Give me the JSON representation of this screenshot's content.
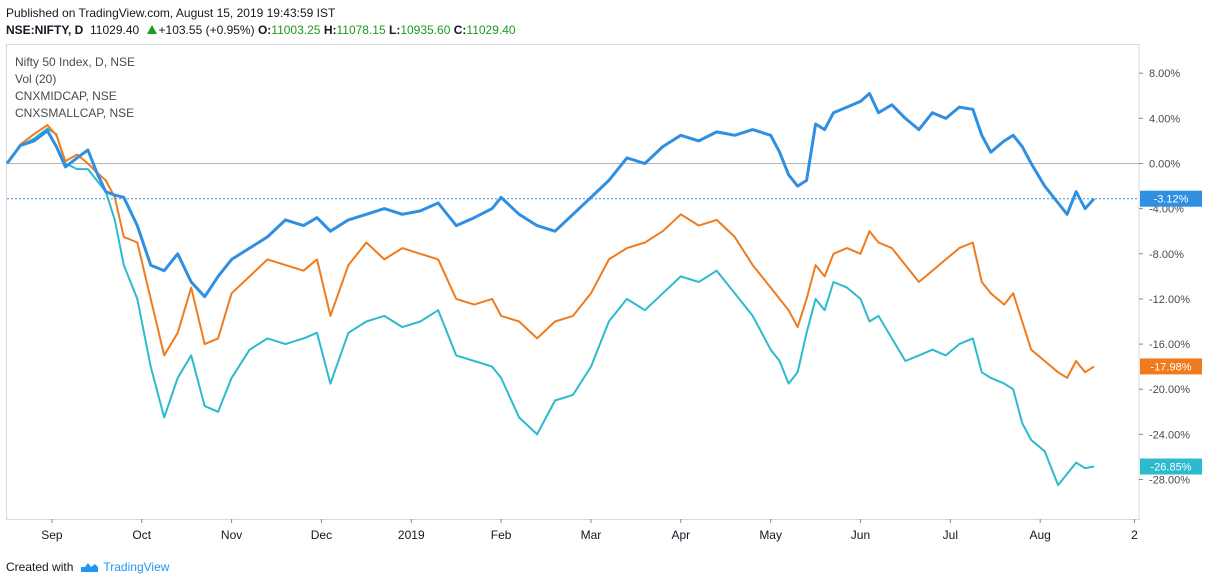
{
  "header": {
    "published": "Published on TradingView.com, August 15, 2019 19:43:59 IST",
    "symbol": "NSE:NIFTY, D",
    "price": "11029.40",
    "change": "+103.55 (+0.95%)",
    "o_label": "O:",
    "o_val": "11003.25",
    "h_label": "H:",
    "h_val": "11078.15",
    "l_label": "L:",
    "l_val": "10935.60",
    "c_label": "C:",
    "c_val": "11029.40"
  },
  "legend": {
    "main": "Nifty 50 Index, D, NSE",
    "vol": "Vol (20)",
    "s1": "CNXMIDCAP, NSE",
    "s2": "CNXSMALLCAP, NSE"
  },
  "footer": {
    "created": "Created with",
    "brand": "TradingView"
  },
  "chart_data": {
    "type": "line",
    "y_unit": "%",
    "ylim": [
      -32,
      10
    ],
    "y_ticks": [
      "8.00%",
      "4.00%",
      "0.00%",
      "-4.00%",
      "-8.00%",
      "-12.00%",
      "-16.00%",
      "-20.00%",
      "-24.00%",
      "-28.00%"
    ],
    "y_tick_values": [
      8,
      4,
      0,
      -4,
      -8,
      -12,
      -16,
      -20,
      -24,
      -28
    ],
    "x_labels": [
      "Sep",
      "Oct",
      "Nov",
      "Dec",
      "2019",
      "Feb",
      "Mar",
      "Apr",
      "May",
      "Jun",
      "Jul",
      "Aug",
      "2"
    ],
    "x_label_positions": [
      0.5,
      1.5,
      2.5,
      3.5,
      4.5,
      5.5,
      6.5,
      7.5,
      8.5,
      9.5,
      10.5,
      11.5,
      12.55
    ],
    "x_range": [
      0,
      12.6
    ],
    "zero_line": 0,
    "series": [
      {
        "name": "NIFTY",
        "color": "#2f8fe0",
        "last_label": "-3.12%",
        "points": [
          [
            0,
            0
          ],
          [
            0.15,
            1.6
          ],
          [
            0.3,
            2.0
          ],
          [
            0.45,
            2.9
          ],
          [
            0.55,
            1.5
          ],
          [
            0.65,
            -0.3
          ],
          [
            0.78,
            0.5
          ],
          [
            0.9,
            1.2
          ],
          [
            1.0,
            -0.8
          ],
          [
            1.1,
            -2.5
          ],
          [
            1.2,
            -2.8
          ],
          [
            1.3,
            -3.0
          ],
          [
            1.45,
            -5.5
          ],
          [
            1.6,
            -9.0
          ],
          [
            1.75,
            -9.5
          ],
          [
            1.9,
            -8.0
          ],
          [
            2.05,
            -10.5
          ],
          [
            2.2,
            -11.8
          ],
          [
            2.35,
            -10.0
          ],
          [
            2.5,
            -8.5
          ],
          [
            2.7,
            -7.5
          ],
          [
            2.9,
            -6.5
          ],
          [
            3.1,
            -5.0
          ],
          [
            3.3,
            -5.5
          ],
          [
            3.45,
            -4.8
          ],
          [
            3.6,
            -6.0
          ],
          [
            3.8,
            -5.0
          ],
          [
            4.0,
            -4.5
          ],
          [
            4.2,
            -4.0
          ],
          [
            4.4,
            -4.5
          ],
          [
            4.6,
            -4.2
          ],
          [
            4.8,
            -3.5
          ],
          [
            5.0,
            -5.5
          ],
          [
            5.2,
            -4.8
          ],
          [
            5.4,
            -4.0
          ],
          [
            5.5,
            -3.0
          ],
          [
            5.7,
            -4.5
          ],
          [
            5.9,
            -5.5
          ],
          [
            6.1,
            -6.0
          ],
          [
            6.3,
            -4.5
          ],
          [
            6.5,
            -3.0
          ],
          [
            6.7,
            -1.5
          ],
          [
            6.9,
            0.5
          ],
          [
            7.1,
            0.0
          ],
          [
            7.3,
            1.5
          ],
          [
            7.5,
            2.5
          ],
          [
            7.7,
            2.0
          ],
          [
            7.9,
            2.8
          ],
          [
            8.1,
            2.5
          ],
          [
            8.3,
            3.0
          ],
          [
            8.5,
            2.5
          ],
          [
            8.6,
            1.0
          ],
          [
            8.7,
            -1.0
          ],
          [
            8.8,
            -2.0
          ],
          [
            8.9,
            -1.5
          ],
          [
            9.0,
            3.5
          ],
          [
            9.1,
            3.0
          ],
          [
            9.2,
            4.5
          ],
          [
            9.35,
            5.0
          ],
          [
            9.5,
            5.5
          ],
          [
            9.6,
            6.2
          ],
          [
            9.7,
            4.5
          ],
          [
            9.85,
            5.2
          ],
          [
            10.0,
            4.0
          ],
          [
            10.15,
            3.0
          ],
          [
            10.3,
            4.5
          ],
          [
            10.45,
            4.0
          ],
          [
            10.6,
            5.0
          ],
          [
            10.75,
            4.8
          ],
          [
            10.85,
            2.5
          ],
          [
            10.95,
            1.0
          ],
          [
            11.1,
            2.0
          ],
          [
            11.2,
            2.5
          ],
          [
            11.3,
            1.5
          ],
          [
            11.4,
            0.0
          ],
          [
            11.55,
            -2.0
          ],
          [
            11.7,
            -3.5
          ],
          [
            11.8,
            -4.5
          ],
          [
            11.9,
            -2.5
          ],
          [
            12.0,
            -4.0
          ],
          [
            12.1,
            -3.12
          ]
        ]
      },
      {
        "name": "CNXMIDCAP",
        "color": "#f07b1d",
        "last_label": "-17.98%",
        "points": [
          [
            0,
            0
          ],
          [
            0.15,
            1.7
          ],
          [
            0.3,
            2.6
          ],
          [
            0.45,
            3.4
          ],
          [
            0.55,
            2.5
          ],
          [
            0.65,
            0.2
          ],
          [
            0.78,
            0.8
          ],
          [
            0.9,
            0.0
          ],
          [
            1.0,
            -0.8
          ],
          [
            1.1,
            -1.5
          ],
          [
            1.2,
            -3.0
          ],
          [
            1.3,
            -6.5
          ],
          [
            1.45,
            -7.0
          ],
          [
            1.6,
            -12.0
          ],
          [
            1.75,
            -17.0
          ],
          [
            1.9,
            -15.0
          ],
          [
            2.05,
            -11.0
          ],
          [
            2.2,
            -16.0
          ],
          [
            2.35,
            -15.5
          ],
          [
            2.5,
            -11.5
          ],
          [
            2.7,
            -10.0
          ],
          [
            2.9,
            -8.5
          ],
          [
            3.1,
            -9.0
          ],
          [
            3.3,
            -9.5
          ],
          [
            3.45,
            -8.5
          ],
          [
            3.6,
            -13.5
          ],
          [
            3.8,
            -9.0
          ],
          [
            4.0,
            -7.0
          ],
          [
            4.2,
            -8.5
          ],
          [
            4.4,
            -7.5
          ],
          [
            4.6,
            -8.0
          ],
          [
            4.8,
            -8.5
          ],
          [
            5.0,
            -12.0
          ],
          [
            5.2,
            -12.5
          ],
          [
            5.4,
            -12.0
          ],
          [
            5.5,
            -13.5
          ],
          [
            5.7,
            -14.0
          ],
          [
            5.9,
            -15.5
          ],
          [
            6.1,
            -14.0
          ],
          [
            6.3,
            -13.5
          ],
          [
            6.5,
            -11.5
          ],
          [
            6.7,
            -8.5
          ],
          [
            6.9,
            -7.5
          ],
          [
            7.1,
            -7.0
          ],
          [
            7.3,
            -6.0
          ],
          [
            7.5,
            -4.5
          ],
          [
            7.7,
            -5.5
          ],
          [
            7.9,
            -5.0
          ],
          [
            8.1,
            -6.5
          ],
          [
            8.3,
            -9.0
          ],
          [
            8.5,
            -11.0
          ],
          [
            8.6,
            -12.0
          ],
          [
            8.7,
            -13.0
          ],
          [
            8.8,
            -14.5
          ],
          [
            8.9,
            -12.0
          ],
          [
            9.0,
            -9.0
          ],
          [
            9.1,
            -10.0
          ],
          [
            9.2,
            -8.0
          ],
          [
            9.35,
            -7.5
          ],
          [
            9.5,
            -8.0
          ],
          [
            9.6,
            -6.0
          ],
          [
            9.7,
            -7.0
          ],
          [
            9.85,
            -7.5
          ],
          [
            10.0,
            -9.0
          ],
          [
            10.15,
            -10.5
          ],
          [
            10.3,
            -9.5
          ],
          [
            10.45,
            -8.5
          ],
          [
            10.6,
            -7.5
          ],
          [
            10.75,
            -7.0
          ],
          [
            10.85,
            -10.5
          ],
          [
            10.95,
            -11.5
          ],
          [
            11.1,
            -12.5
          ],
          [
            11.2,
            -11.5
          ],
          [
            11.3,
            -14.0
          ],
          [
            11.4,
            -16.5
          ],
          [
            11.55,
            -17.5
          ],
          [
            11.7,
            -18.5
          ],
          [
            11.8,
            -19.0
          ],
          [
            11.9,
            -17.5
          ],
          [
            12.0,
            -18.5
          ],
          [
            12.1,
            -17.98
          ]
        ]
      },
      {
        "name": "CNXSMALLCAP",
        "color": "#2bbbcc",
        "last_label": "-26.85%",
        "points": [
          [
            0,
            0
          ],
          [
            0.15,
            1.6
          ],
          [
            0.3,
            2.2
          ],
          [
            0.45,
            3.1
          ],
          [
            0.55,
            2.6
          ],
          [
            0.65,
            0.0
          ],
          [
            0.78,
            -0.5
          ],
          [
            0.9,
            -0.5
          ],
          [
            1.0,
            -1.5
          ],
          [
            1.1,
            -2.5
          ],
          [
            1.2,
            -5.0
          ],
          [
            1.3,
            -9.0
          ],
          [
            1.45,
            -12.0
          ],
          [
            1.6,
            -18.0
          ],
          [
            1.75,
            -22.5
          ],
          [
            1.9,
            -19.0
          ],
          [
            2.05,
            -17.0
          ],
          [
            2.2,
            -21.5
          ],
          [
            2.35,
            -22.0
          ],
          [
            2.5,
            -19.0
          ],
          [
            2.7,
            -16.5
          ],
          [
            2.9,
            -15.5
          ],
          [
            3.1,
            -16.0
          ],
          [
            3.3,
            -15.5
          ],
          [
            3.45,
            -15.0
          ],
          [
            3.6,
            -19.5
          ],
          [
            3.8,
            -15.0
          ],
          [
            4.0,
            -14.0
          ],
          [
            4.2,
            -13.5
          ],
          [
            4.4,
            -14.5
          ],
          [
            4.6,
            -14.0
          ],
          [
            4.8,
            -13.0
          ],
          [
            5.0,
            -17.0
          ],
          [
            5.2,
            -17.5
          ],
          [
            5.4,
            -18.0
          ],
          [
            5.5,
            -19.0
          ],
          [
            5.7,
            -22.5
          ],
          [
            5.9,
            -24.0
          ],
          [
            6.1,
            -21.0
          ],
          [
            6.3,
            -20.5
          ],
          [
            6.5,
            -18.0
          ],
          [
            6.7,
            -14.0
          ],
          [
            6.9,
            -12.0
          ],
          [
            7.1,
            -13.0
          ],
          [
            7.3,
            -11.5
          ],
          [
            7.5,
            -10.0
          ],
          [
            7.7,
            -10.5
          ],
          [
            7.9,
            -9.5
          ],
          [
            8.1,
            -11.5
          ],
          [
            8.3,
            -13.5
          ],
          [
            8.5,
            -16.5
          ],
          [
            8.6,
            -17.5
          ],
          [
            8.7,
            -19.5
          ],
          [
            8.8,
            -18.5
          ],
          [
            8.9,
            -15.0
          ],
          [
            9.0,
            -12.0
          ],
          [
            9.1,
            -13.0
          ],
          [
            9.2,
            -10.5
          ],
          [
            9.35,
            -11.0
          ],
          [
            9.5,
            -12.0
          ],
          [
            9.6,
            -14.0
          ],
          [
            9.7,
            -13.5
          ],
          [
            9.85,
            -15.5
          ],
          [
            10.0,
            -17.5
          ],
          [
            10.15,
            -17.0
          ],
          [
            10.3,
            -16.5
          ],
          [
            10.45,
            -17.0
          ],
          [
            10.6,
            -16.0
          ],
          [
            10.75,
            -15.5
          ],
          [
            10.85,
            -18.5
          ],
          [
            10.95,
            -19.0
          ],
          [
            11.1,
            -19.5
          ],
          [
            11.2,
            -20.0
          ],
          [
            11.3,
            -23.0
          ],
          [
            11.4,
            -24.5
          ],
          [
            11.55,
            -25.5
          ],
          [
            11.7,
            -28.5
          ],
          [
            11.8,
            -27.5
          ],
          [
            11.9,
            -26.5
          ],
          [
            12.0,
            -27.0
          ],
          [
            12.1,
            -26.85
          ]
        ]
      }
    ]
  }
}
